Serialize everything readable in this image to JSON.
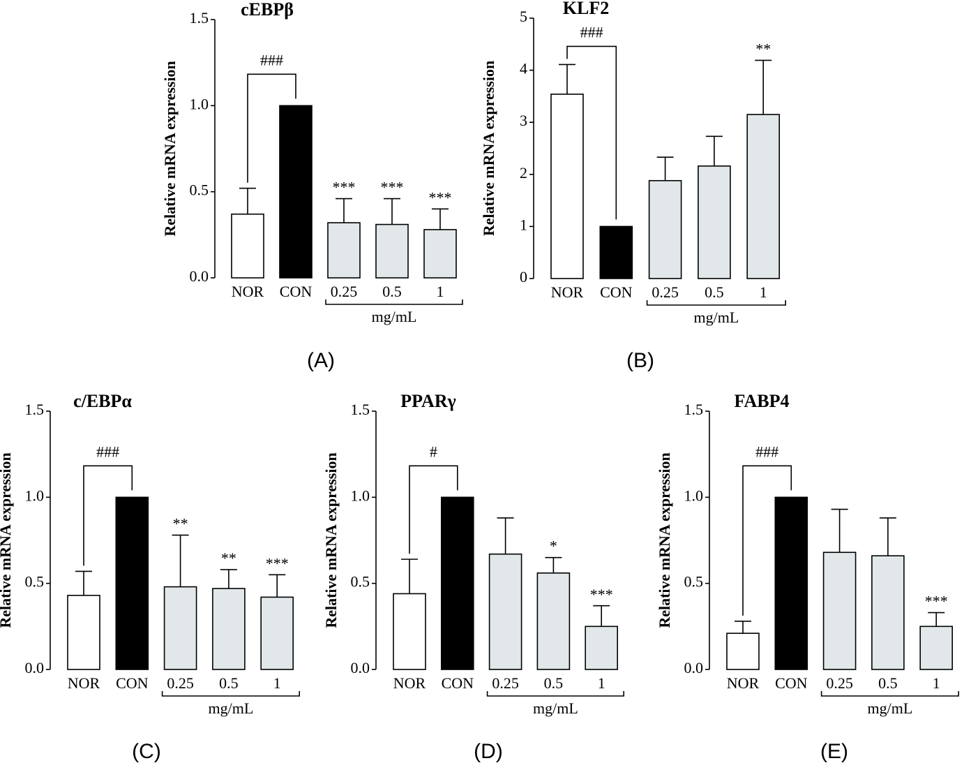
{
  "chart_data": [
    {
      "type": "bar",
      "title": "cEBPβ",
      "panel_label": "(A)",
      "ylabel": "Relative mRNA expression",
      "categories": [
        "NOR",
        "CON",
        "0.25",
        "0.5",
        "1"
      ],
      "values": [
        0.37,
        1.0,
        0.32,
        0.31,
        0.28
      ],
      "errors": [
        0.15,
        null,
        0.14,
        0.15,
        0.12
      ],
      "colors": [
        "#ffffff",
        "#000000",
        "#e2e8ea",
        "#e2e8ea",
        "#e2e8ea"
      ],
      "significance": [
        null,
        null,
        "***",
        "***",
        "***"
      ],
      "bracket_label": "###",
      "group_label": "mg/mL",
      "ylim": [
        0,
        1.5
      ],
      "yticks": [
        {
          "value": 0,
          "label": "0.0"
        },
        {
          "value": 0.5,
          "label": "0.5"
        },
        {
          "value": 1,
          "label": "1.0"
        },
        {
          "value": 1.5,
          "label": "1.5"
        }
      ]
    },
    {
      "type": "bar",
      "title": "KLF2",
      "panel_label": "(B)",
      "ylabel": "Relative mRNA expression",
      "categories": [
        "NOR",
        "CON",
        "0.25",
        "0.5",
        "1"
      ],
      "values": [
        3.54,
        1.0,
        1.88,
        2.16,
        3.15
      ],
      "errors": [
        0.57,
        null,
        0.45,
        0.57,
        1.04
      ],
      "colors": [
        "#ffffff",
        "#000000",
        "#e2e8ea",
        "#e2e8ea",
        "#e2e8ea"
      ],
      "significance": [
        null,
        null,
        null,
        null,
        "**"
      ],
      "bracket_label": "###",
      "group_label": "mg/mL",
      "ylim": [
        0,
        5
      ],
      "yticks": [
        0,
        1,
        2,
        3,
        4,
        5
      ]
    },
    {
      "type": "bar",
      "title": "c/EBPα",
      "panel_label": "(C)",
      "ylabel": "Relative mRNA expression",
      "categories": [
        "NOR",
        "CON",
        "0.25",
        "0.5",
        "1"
      ],
      "values": [
        0.43,
        1.0,
        0.48,
        0.47,
        0.42
      ],
      "errors": [
        0.14,
        null,
        0.3,
        0.11,
        0.13
      ],
      "colors": [
        "#ffffff",
        "#000000",
        "#e2e8ea",
        "#e2e8ea",
        "#e2e8ea"
      ],
      "significance": [
        null,
        null,
        "**",
        "**",
        "***"
      ],
      "bracket_label": "###",
      "group_label": "mg/mL",
      "ylim": [
        0,
        1.5
      ],
      "yticks": [
        {
          "value": 0,
          "label": "0.0"
        },
        {
          "value": 0.5,
          "label": "0.5"
        },
        {
          "value": 1,
          "label": "1.0"
        },
        {
          "value": 1.5,
          "label": "1.5"
        }
      ]
    },
    {
      "type": "bar",
      "title": "PPARγ",
      "panel_label": "(D)",
      "ylabel": "Relative mRNA expression",
      "categories": [
        "NOR",
        "CON",
        "0.25",
        "0.5",
        "1"
      ],
      "values": [
        0.44,
        1.0,
        0.67,
        0.56,
        0.25
      ],
      "errors": [
        0.2,
        null,
        0.21,
        0.09,
        0.12
      ],
      "colors": [
        "#ffffff",
        "#000000",
        "#e2e8ea",
        "#e2e8ea",
        "#e2e8ea"
      ],
      "significance": [
        null,
        null,
        null,
        "*",
        "***"
      ],
      "bracket_label": "#",
      "group_label": "mg/mL",
      "ylim": [
        0,
        1.5
      ],
      "yticks": [
        {
          "value": 0,
          "label": "0.0"
        },
        {
          "value": 0.5,
          "label": "0.5"
        },
        {
          "value": 1,
          "label": "1.0"
        },
        {
          "value": 1.5,
          "label": "1.5"
        }
      ]
    },
    {
      "type": "bar",
      "title": "FABP4",
      "panel_label": "(E)",
      "ylabel": "Relative mRNA expression",
      "categories": [
        "NOR",
        "CON",
        "0.25",
        "0.5",
        "1"
      ],
      "values": [
        0.21,
        1.0,
        0.68,
        0.66,
        0.25
      ],
      "errors": [
        0.07,
        null,
        0.25,
        0.22,
        0.08
      ],
      "colors": [
        "#ffffff",
        "#000000",
        "#e2e8ea",
        "#e2e8ea",
        "#e2e8ea"
      ],
      "significance": [
        null,
        null,
        null,
        null,
        "***"
      ],
      "bracket_label": "###",
      "group_label": "mg/mL",
      "ylim": [
        0,
        1.5
      ],
      "yticks": [
        {
          "value": 0,
          "label": "0.0"
        },
        {
          "value": 0.5,
          "label": "0.5"
        },
        {
          "value": 1,
          "label": "1.0"
        },
        {
          "value": 1.5,
          "label": "1.5"
        }
      ]
    }
  ]
}
